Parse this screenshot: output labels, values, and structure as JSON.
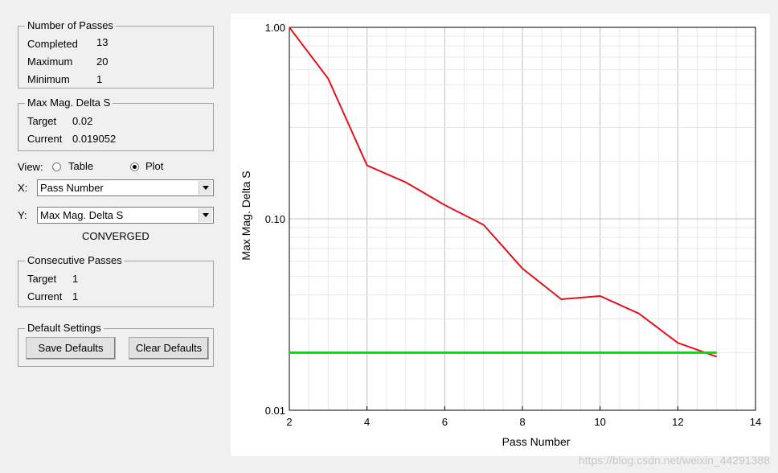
{
  "passes": {
    "title": "Number of Passes",
    "completed_label": "Completed",
    "completed": "13",
    "maximum_label": "Maximum",
    "maximum": "20",
    "minimum_label": "Minimum",
    "minimum": "1"
  },
  "delta": {
    "title": "Max Mag. Delta S",
    "target_label": "Target",
    "target": "0.02",
    "current_label": "Current",
    "current": "0.019052"
  },
  "view": {
    "label": "View:",
    "table_label": "Table",
    "plot_label": "Plot",
    "selected": "Plot"
  },
  "x_select": {
    "label": "X:",
    "value": "Pass Number"
  },
  "y_select": {
    "label": "Y:",
    "value": "Max Mag. Delta S"
  },
  "status": "CONVERGED",
  "consecutive": {
    "title": "Consecutive Passes",
    "target_label": "Target",
    "target": "1",
    "current_label": "Current",
    "current": "1"
  },
  "defaults": {
    "title": "Default Settings",
    "save_label": "Save Defaults",
    "clear_label": "Clear Defaults"
  },
  "watermark": "https://blog.csdn.net/weixin_44291388",
  "chart_data": {
    "type": "line",
    "xlabel": "Pass Number",
    "ylabel": "Max Mag. Delta S",
    "xlim": [
      2,
      14
    ],
    "ylim": [
      0.01,
      1.0
    ],
    "yscale": "log",
    "xticks": [
      2,
      4,
      6,
      8,
      10,
      12,
      14
    ],
    "xtick_labels": [
      "2",
      "4",
      "6",
      "8",
      "10",
      "12",
      "14"
    ],
    "yticks": [
      0.01,
      0.1,
      1.0
    ],
    "ytick_labels": [
      "0.01",
      "0.10",
      "1.00"
    ],
    "grid": true,
    "series": [
      {
        "color": "#e0141e",
        "x": [
          2,
          3,
          4,
          5,
          6,
          7,
          8,
          9,
          10,
          11,
          12,
          13
        ],
        "values": [
          1.0,
          0.54,
          0.19,
          0.155,
          0.118,
          0.093,
          0.055,
          0.038,
          0.0395,
          0.032,
          0.0225,
          0.019052
        ]
      },
      {
        "color": "#00e000",
        "x": [
          2,
          13
        ],
        "values": [
          0.02,
          0.02
        ]
      }
    ]
  }
}
